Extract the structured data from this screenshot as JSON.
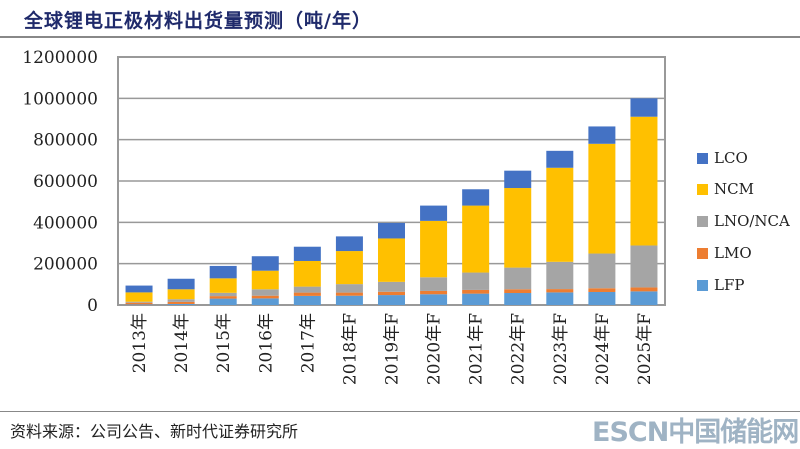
{
  "title": "全球锂电正极材料出货量预测（吨/年）",
  "source": "资料来源：公司公告、新时代证券研究所",
  "watermark": "ESCN中国储能网",
  "chart_data": {
    "type": "bar",
    "stacked": true,
    "title": "全球锂电正极材料出货量预测（吨/年）",
    "categories": [
      "2013年",
      "2014年",
      "2015年",
      "2016年",
      "2017年",
      "2018年F",
      "2019年F",
      "2020年F",
      "2021年F",
      "2022年F",
      "2023年F",
      "2024年F",
      "2025年F"
    ],
    "series": [
      {
        "name": "LFP",
        "color": "#5B9BD5",
        "values": [
          3000,
          5000,
          31000,
          32000,
          44000,
          45000,
          48000,
          52000,
          55000,
          58000,
          61000,
          63000,
          66000
        ]
      },
      {
        "name": "LMO",
        "color": "#ED7D31",
        "values": [
          8000,
          10000,
          12000,
          13000,
          16000,
          15000,
          16000,
          16000,
          18000,
          18000,
          16000,
          18000,
          19000
        ]
      },
      {
        "name": "LNO/NCA",
        "color": "#A5A5A5",
        "values": [
          5000,
          13000,
          16000,
          31000,
          29000,
          41000,
          48000,
          66000,
          84000,
          105000,
          132000,
          168000,
          203000
        ]
      },
      {
        "name": "NCM",
        "color": "#FFC000",
        "values": [
          45000,
          48000,
          70000,
          90000,
          124000,
          160000,
          210000,
          273000,
          324000,
          385000,
          455000,
          531000,
          623000
        ]
      },
      {
        "name": "LCO",
        "color": "#4472C4",
        "values": [
          33000,
          51000,
          60000,
          70000,
          69000,
          71000,
          75000,
          74000,
          79000,
          84000,
          82000,
          84000,
          89000
        ]
      }
    ],
    "yticks": [
      "0",
      "200000",
      "400000",
      "600000",
      "800000",
      "1000000",
      "1200000"
    ],
    "ylim": [
      0,
      1200000
    ],
    "grid": true,
    "legend": "right"
  }
}
